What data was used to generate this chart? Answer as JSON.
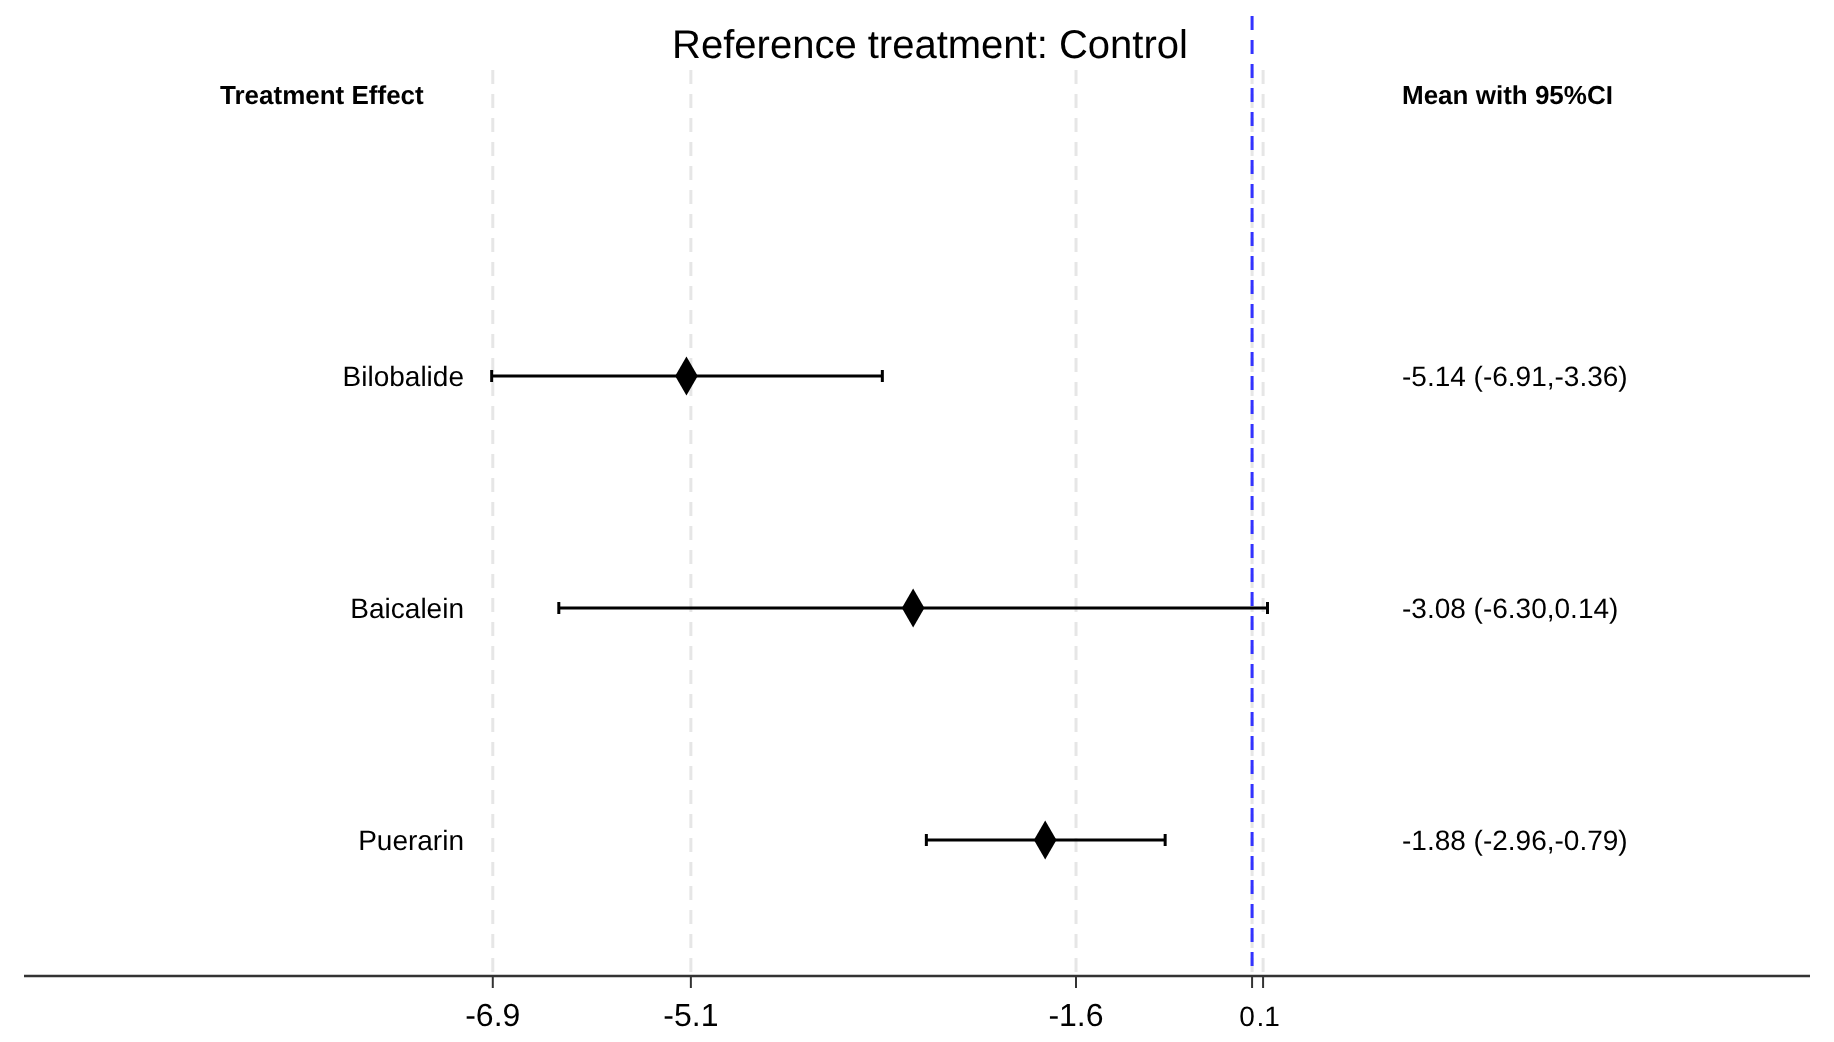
{
  "chart_data": {
    "type": "scatter",
    "orientation": "horizontal",
    "title": "Reference treatment: Control",
    "annotations": [
      "Treatment Effect",
      "Mean with 95%CI",
      "-5.14 (-6.91,-3.36)",
      "-3.08 (-6.30,0.14)",
      "-1.88 (-2.96,-0.79)"
    ],
    "categories": [
      "Bilobalide",
      "Baicalein",
      "Puerarin"
    ],
    "values": [
      -5.14,
      -3.08,
      -1.88
    ],
    "errors": [
      [
        -6.91,
        -3.36
      ],
      [
        -6.3,
        0.14
      ],
      [
        -2.96,
        -0.79
      ]
    ],
    "color": "#000000",
    "marker": "diamond",
    "xlim": [
      -11.16,
      5.07
    ],
    "xticks": [
      -6.9,
      -5.1,
      -1.6,
      {
        "value": 0,
        "label": "0"
      },
      {
        "value": 0.1,
        "label": ".1"
      }
    ],
    "grid": "x",
    "ref_lines": [
      {
        "axis": "x",
        "value": 0,
        "color": "#3333ff",
        "line_style": "dashed"
      }
    ]
  }
}
